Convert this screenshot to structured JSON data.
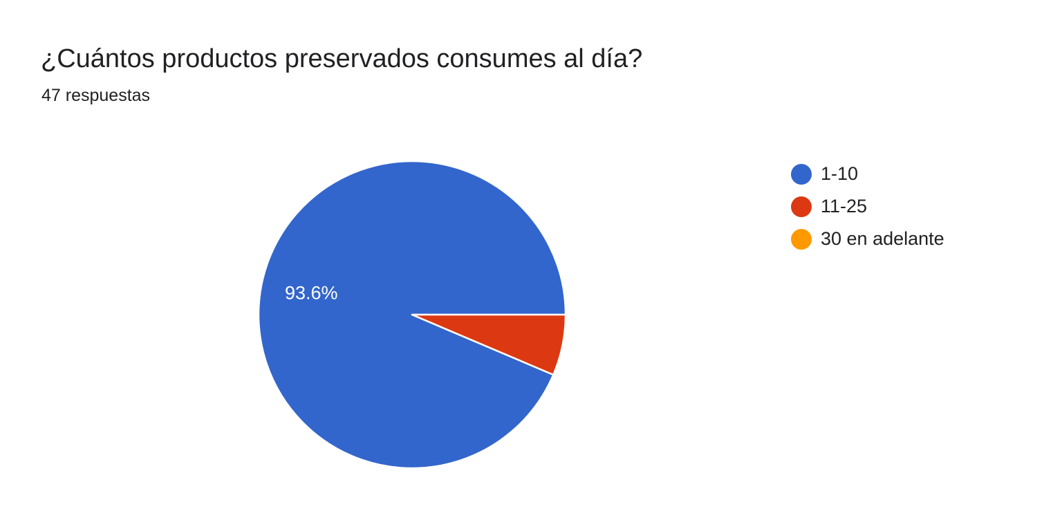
{
  "chart_data": {
    "type": "pie",
    "title": "¿Cuántos productos preservados consumes al día?",
    "subtitle": "47 respuestas",
    "categories": [
      "1-10",
      "11-25",
      "30 en adelante"
    ],
    "values": [
      93.6,
      6.4,
      0
    ],
    "colors": [
      "#3366cc",
      "#dc3912",
      "#ff9900"
    ],
    "data_labels": [
      "93.6%",
      "",
      ""
    ],
    "legend_position": "right",
    "start_angle_deg": 0,
    "direction": "counterclockwise"
  }
}
